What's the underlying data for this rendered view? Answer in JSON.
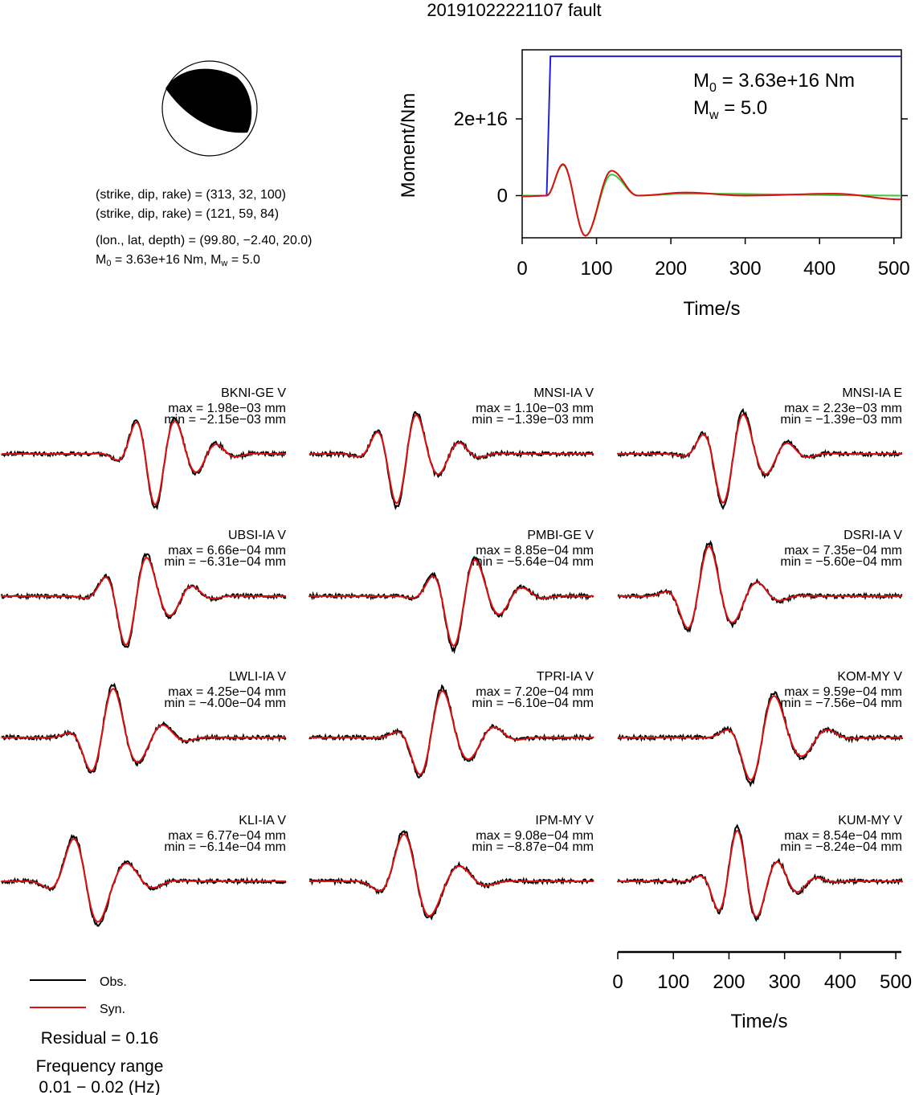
{
  "page": {
    "title": "20191022221107 fault"
  },
  "focal": {
    "lines": [
      "(strike, dip, rake) = (313, 32, 100)",
      "(strike, dip, rake) = (121, 59, 84)",
      "(lon., lat, depth) = (99.80, −2.40, 20.0)"
    ],
    "m0_text": "M0 = 3.63e+16 Nm, Mw = 5.0"
  },
  "chart_data": [
    {
      "type": "line",
      "title": "",
      "xlabel": "Time/s",
      "ylabel": "Moment/Nm",
      "xlim": [
        0,
        510
      ],
      "ylim": [
        -1.1e+16,
        3.8e+16
      ],
      "xticks": [
        0,
        100,
        200,
        300,
        400,
        500
      ],
      "yticks": [
        {
          "value": 0,
          "label": "0"
        },
        {
          "value": 2e+16,
          "label": "2e+16"
        }
      ],
      "annotations": [
        "M0 = 3.63e+16 Nm",
        "Mw = 5.0"
      ],
      "series": [
        {
          "color": "#1f22d6",
          "x": [
            0,
            33,
            38,
            510
          ],
          "y": [
            -200000000000000.0,
            0.0,
            3.63e+16,
            3.63e+16
          ]
        },
        {
          "color": "#33cc33",
          "x": [
            0,
            33,
            55,
            85,
            120,
            155,
            220,
            510
          ],
          "y": [
            0,
            0,
            8000000000000000.0,
            -1.05e+16,
            5500000000000000.0,
            0,
            500000000000000.0,
            0
          ]
        },
        {
          "color": "#dd1111",
          "x": [
            0,
            33,
            55,
            85,
            120,
            155,
            220,
            300,
            420,
            510
          ],
          "y": [
            -200000000000000.0,
            0,
            8200000000000000.0,
            -1.05e+16,
            6500000000000000.0,
            0,
            800000000000000.0,
            0,
            500000000000000.0,
            -1000000000000000.0
          ]
        }
      ]
    },
    {
      "type": "line",
      "title": "",
      "xlabel": "Time/s",
      "xlim": [
        0,
        510
      ],
      "xticks": [
        0,
        100,
        200,
        300,
        400,
        500
      ],
      "legend": [
        {
          "name": "Obs.",
          "color": "#000000"
        },
        {
          "name": "Syn.",
          "color": "#dd1111"
        }
      ],
      "stations": [
        {
          "label": "BKNI-GE V",
          "max": "max = 1.98e−03 mm",
          "min": "min = −2.15e−03 mm"
        },
        {
          "label": "MNSI-IA V",
          "max": "max = 1.10e−03 mm",
          "min": "min = −1.39e−03 mm"
        },
        {
          "label": "MNSI-IA E",
          "max": "max = 2.23e−03 mm",
          "min": "min = −1.39e−03 mm"
        },
        {
          "label": "UBSI-IA V",
          "max": "max = 6.66e−04 mm",
          "min": "min = −6.31e−04 mm"
        },
        {
          "label": "PMBI-GE V",
          "max": "max = 8.85e−04 mm",
          "min": "min = −5.64e−04 mm"
        },
        {
          "label": "DSRI-IA V",
          "max": "max = 7.35e−04 mm",
          "min": "min = −5.60e−04 mm"
        },
        {
          "label": "LWLI-IA V",
          "max": "max = 4.25e−04 mm",
          "min": "min = −4.00e−04 mm"
        },
        {
          "label": "TPRI-IA V",
          "max": "max = 7.20e−04 mm",
          "min": "min = −6.10e−04 mm"
        },
        {
          "label": "KOM-MY V",
          "max": "max = 9.59e−04 mm",
          "min": "min = −7.56e−04 mm"
        },
        {
          "label": "KLI-IA V",
          "max": "max = 6.77e−04 mm",
          "min": "min = −6.14e−04 mm"
        },
        {
          "label": "IPM-MY V",
          "max": "max = 9.08e−04 mm",
          "min": "min = −8.87e−04 mm"
        },
        {
          "label": "KUM-MY V",
          "max": "max = 8.54e−04 mm",
          "min": "min = −8.24e−04 mm"
        }
      ]
    }
  ],
  "footer": {
    "residual": "Residual = 0.16",
    "freq_label": "Frequency range",
    "freq_value": "0.01 − 0.02 (Hz)"
  }
}
